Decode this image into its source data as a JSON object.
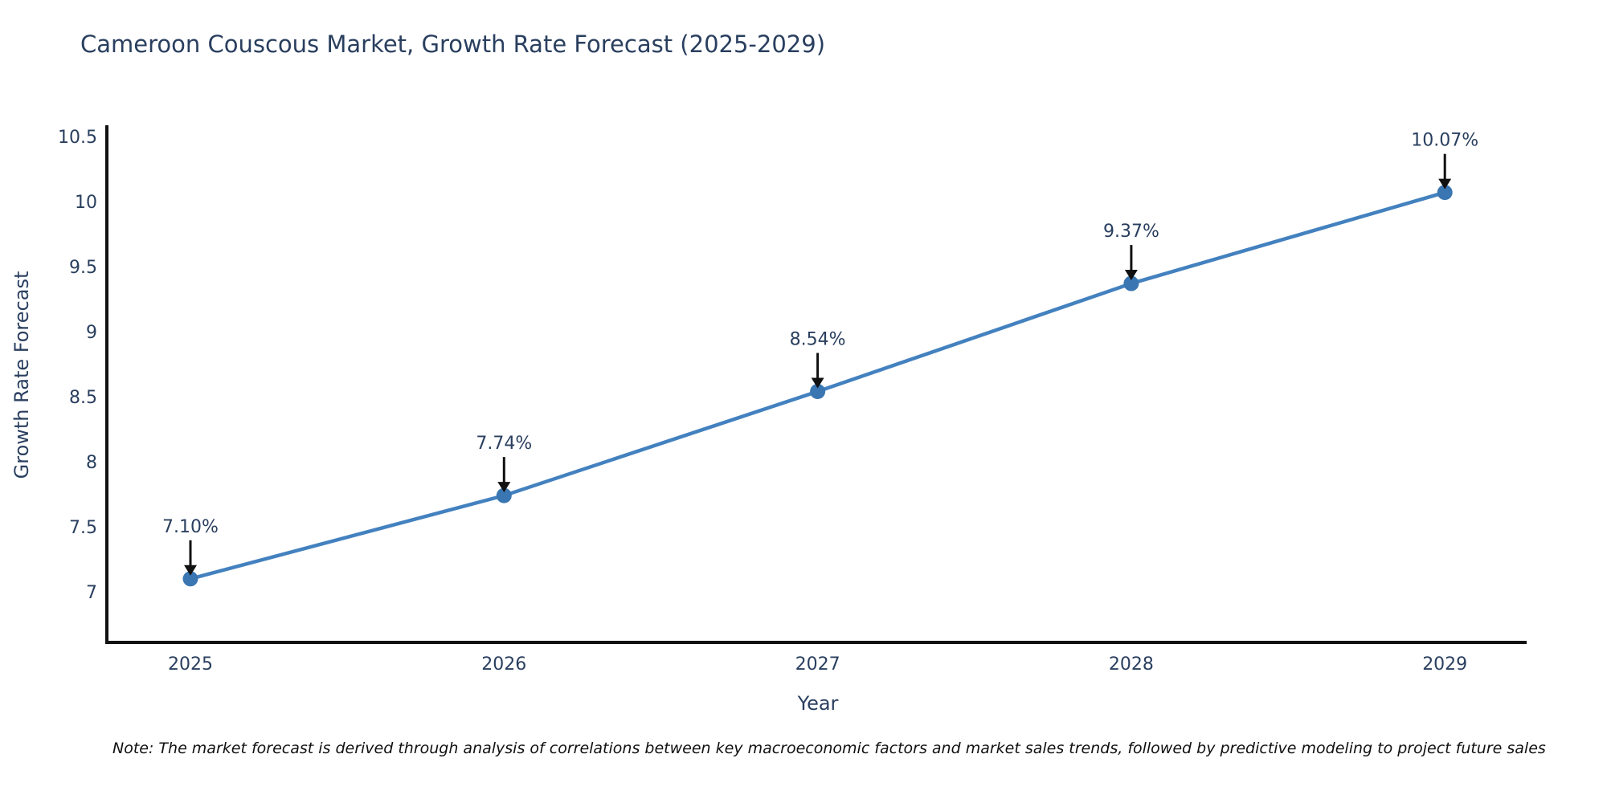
{
  "title": "Cameroon Couscous Market, Growth Rate Forecast (2025-2029)",
  "note": "Note: The market forecast is derived through analysis of correlations between key macroeconomic factors and market sales trends, followed by predictive modeling to project future sales",
  "chart_data": {
    "type": "line",
    "title": "Cameroon Couscous Market, Growth Rate Forecast (2025-2029)",
    "xlabel": "Year",
    "ylabel": "Growth Rate Forecast",
    "x": [
      "2025",
      "2026",
      "2027",
      "2028",
      "2029"
    ],
    "series": [
      {
        "name": "Growth Rate Forecast",
        "values": [
          7.1,
          7.74,
          8.54,
          9.37,
          10.07
        ]
      }
    ],
    "point_labels": [
      "7.10%",
      "7.74%",
      "8.54%",
      "9.37%",
      "10.07%"
    ],
    "y_ticks": [
      {
        "value": 10.5,
        "label": "10.5"
      },
      {
        "value": 10,
        "label": "10"
      },
      {
        "value": 9.5,
        "label": "9.5"
      },
      {
        "value": 9,
        "label": "9"
      },
      {
        "value": 8.5,
        "label": "8.5"
      },
      {
        "value": 8,
        "label": "8"
      },
      {
        "value": 7.5,
        "label": "7.5"
      },
      {
        "value": 7,
        "label": "7"
      }
    ],
    "ylim": [
      6.6,
      10.58
    ],
    "grid": false,
    "legend": "none",
    "colors": {
      "line": "#4381bf",
      "marker": "#3a76b2",
      "axis": "#111111",
      "text": "#2a3f5f",
      "annotation_arrow": "#111111"
    }
  }
}
